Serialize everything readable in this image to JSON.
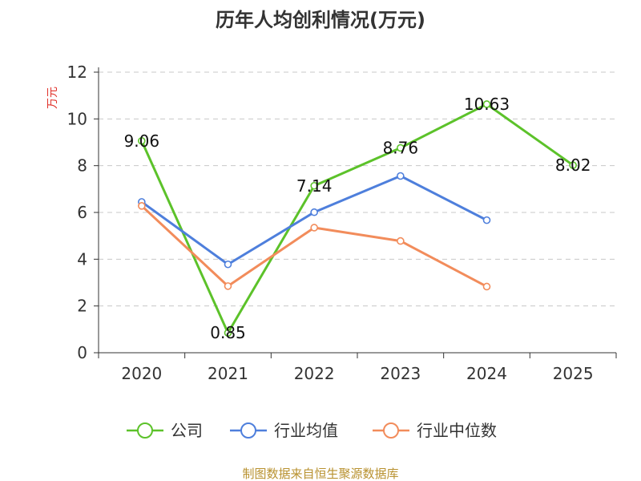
{
  "chart_data": {
    "type": "line",
    "title": "历年人均创利情况(万元)",
    "ylabel": "万元",
    "xlabel": "",
    "categories": [
      "2020",
      "2021",
      "2022",
      "2023",
      "2024",
      "2025"
    ],
    "ylim": [
      0,
      12
    ],
    "yticks": [
      "0",
      "2",
      "4",
      "6",
      "8",
      "10",
      "12"
    ],
    "grid": true,
    "legend_position": "bottom",
    "series": [
      {
        "name": "公司",
        "color": "#5cc22a",
        "values": [
          9.06,
          0.85,
          7.14,
          8.76,
          10.63,
          8.02
        ],
        "labels": [
          "9.06",
          "0.85",
          "7.14",
          "8.76",
          "10.63",
          "8.02"
        ]
      },
      {
        "name": "行业均值",
        "color": "#4e7fdc",
        "values": [
          6.45,
          3.78,
          6.01,
          7.56,
          5.67,
          null
        ]
      },
      {
        "name": "行业中位数",
        "color": "#f28c5b",
        "values": [
          6.28,
          2.85,
          5.35,
          4.78,
          2.83,
          null
        ]
      }
    ]
  },
  "source": "制图数据来自恒生聚源数据库"
}
